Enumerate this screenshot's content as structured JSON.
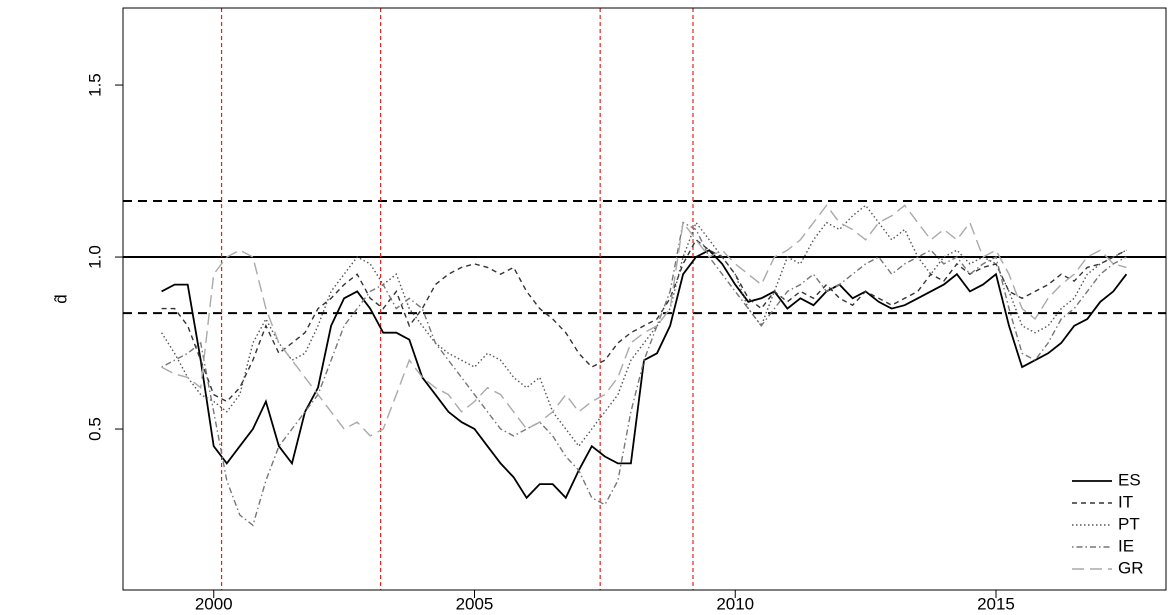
{
  "chart_data": {
    "type": "line",
    "ylabel": "d̂",
    "xlim": [
      1998.26,
      2018.26
    ],
    "ylim": [
      0.032,
      1.724
    ],
    "xticks": [
      2000,
      2005,
      2010,
      2015
    ],
    "yticks": [
      0.5,
      {
        "value": 1,
        "label": "1.0"
      },
      1.5
    ],
    "hlines": [
      {
        "value": 1,
        "color": "#000000",
        "dash": "none"
      },
      {
        "value": 1.163,
        "color": "#000000",
        "dash": "9 6"
      },
      {
        "value": 0.837,
        "color": "#000000",
        "dash": "9 6"
      }
    ],
    "vlines": {
      "color": "#e8201c",
      "values": [
        2000.15,
        2003.2,
        2007.41,
        2009.19
      ]
    },
    "legend": "bottom-right",
    "x": [
      1999,
      1999.25,
      1999.5,
      1999.75,
      2000,
      2000.25,
      2000.5,
      2000.75,
      2001,
      2001.25,
      2001.5,
      2001.75,
      2002,
      2002.25,
      2002.5,
      2002.75,
      2003,
      2003.25,
      2003.5,
      2003.75,
      2004,
      2004.25,
      2004.5,
      2004.75,
      2005,
      2005.25,
      2005.5,
      2005.75,
      2006,
      2006.25,
      2006.5,
      2006.75,
      2007,
      2007.25,
      2007.5,
      2007.75,
      2008,
      2008.25,
      2008.5,
      2008.75,
      2009,
      2009.25,
      2009.5,
      2009.75,
      2010,
      2010.25,
      2010.5,
      2010.75,
      2011,
      2011.25,
      2011.5,
      2011.75,
      2012,
      2012.25,
      2012.5,
      2012.75,
      2013,
      2013.25,
      2013.5,
      2013.75,
      2014,
      2014.25,
      2014.5,
      2014.75,
      2015,
      2015.25,
      2015.5,
      2015.75,
      2016,
      2016.25,
      2016.5,
      2016.75,
      2017,
      2017.25,
      2017.5
    ],
    "series": [
      {
        "name": "ES",
        "color": "#000000",
        "dash": "none",
        "values": [
          0.9,
          0.92,
          0.92,
          0.7,
          0.45,
          0.4,
          0.45,
          0.5,
          0.58,
          0.45,
          0.4,
          0.55,
          0.62,
          0.8,
          0.88,
          0.9,
          0.85,
          0.78,
          0.78,
          0.76,
          0.65,
          0.6,
          0.55,
          0.52,
          0.5,
          0.45,
          0.4,
          0.36,
          0.3,
          0.34,
          0.34,
          0.3,
          0.38,
          0.45,
          0.42,
          0.4,
          0.4,
          0.7,
          0.72,
          0.8,
          0.95,
          1.0,
          1.02,
          0.98,
          0.92,
          0.87,
          0.88,
          0.9,
          0.85,
          0.88,
          0.86,
          0.9,
          0.92,
          0.88,
          0.9,
          0.87,
          0.85,
          0.86,
          0.88,
          0.9,
          0.92,
          0.95,
          0.9,
          0.92,
          0.95,
          0.8,
          0.68,
          0.7,
          0.72,
          0.75,
          0.8,
          0.82,
          0.87,
          0.9,
          0.95
        ]
      },
      {
        "name": "IT",
        "color": "#333333",
        "dash": "5 4",
        "values": [
          0.85,
          0.85,
          0.8,
          0.7,
          0.6,
          0.58,
          0.62,
          0.7,
          0.8,
          0.72,
          0.75,
          0.78,
          0.85,
          0.88,
          0.92,
          0.95,
          0.88,
          0.85,
          0.9,
          0.8,
          0.85,
          0.92,
          0.95,
          0.97,
          0.98,
          0.97,
          0.95,
          0.97,
          0.9,
          0.85,
          0.82,
          0.78,
          0.72,
          0.68,
          0.7,
          0.75,
          0.78,
          0.8,
          0.82,
          0.88,
          0.98,
          1.05,
          1.02,
          1.0,
          0.95,
          0.88,
          0.85,
          0.9,
          0.87,
          0.9,
          0.88,
          0.92,
          0.88,
          0.86,
          0.9,
          0.88,
          0.86,
          0.88,
          0.9,
          0.95,
          0.93,
          0.98,
          0.95,
          0.97,
          0.98,
          0.9,
          0.88,
          0.9,
          0.92,
          0.95,
          0.93,
          0.97,
          0.98,
          1.0,
          1.02
        ]
      },
      {
        "name": "PT",
        "color": "#555555",
        "dash": "1.5 2.5",
        "values": [
          0.78,
          0.72,
          0.65,
          0.6,
          0.58,
          0.55,
          0.6,
          0.75,
          0.82,
          0.75,
          0.7,
          0.72,
          0.8,
          0.9,
          0.95,
          1.0,
          0.98,
          0.92,
          0.95,
          0.85,
          0.8,
          0.75,
          0.72,
          0.7,
          0.68,
          0.72,
          0.7,
          0.65,
          0.62,
          0.65,
          0.55,
          0.5,
          0.45,
          0.5,
          0.55,
          0.6,
          0.7,
          0.75,
          0.8,
          0.85,
          1.0,
          1.1,
          1.05,
          1.0,
          0.95,
          0.85,
          0.8,
          0.9,
          1.0,
          0.98,
          1.05,
          1.1,
          1.08,
          1.12,
          1.15,
          1.1,
          1.05,
          1.08,
          1.0,
          0.95,
          1.0,
          1.02,
          0.98,
          1.0,
          0.98,
          0.9,
          0.8,
          0.78,
          0.8,
          0.85,
          0.88,
          0.95,
          0.98,
          1.0,
          1.02
        ]
      },
      {
        "name": "IE",
        "color": "#777777",
        "dash": "1.5 3 6 3",
        "values": [
          0.68,
          0.7,
          0.72,
          0.75,
          0.55,
          0.35,
          0.25,
          0.22,
          0.35,
          0.45,
          0.5,
          0.55,
          0.6,
          0.7,
          0.8,
          0.85,
          0.9,
          0.92,
          0.85,
          0.88,
          0.85,
          0.75,
          0.7,
          0.65,
          0.6,
          0.55,
          0.5,
          0.48,
          0.5,
          0.52,
          0.48,
          0.42,
          0.38,
          0.3,
          0.28,
          0.35,
          0.55,
          0.7,
          0.8,
          0.9,
          1.1,
          1.08,
          1.0,
          0.95,
          0.9,
          0.85,
          0.8,
          0.85,
          0.9,
          0.92,
          0.95,
          0.9,
          0.92,
          0.95,
          0.98,
          1.0,
          0.95,
          0.98,
          1.0,
          1.02,
          0.98,
          1.0,
          0.95,
          0.98,
          1.0,
          0.85,
          0.72,
          0.7,
          0.75,
          0.82,
          0.85,
          0.9,
          0.95,
          0.98,
          1.0
        ]
      },
      {
        "name": "GR",
        "color": "#aaaaaa",
        "dash": "12 6",
        "values": [
          0.68,
          0.66,
          0.65,
          0.62,
          0.95,
          1.0,
          1.02,
          1.0,
          0.85,
          0.75,
          0.7,
          0.65,
          0.6,
          0.55,
          0.5,
          0.52,
          0.48,
          0.5,
          0.6,
          0.7,
          0.65,
          0.62,
          0.6,
          0.55,
          0.58,
          0.62,
          0.6,
          0.55,
          0.5,
          0.52,
          0.55,
          0.6,
          0.55,
          0.58,
          0.6,
          0.65,
          0.75,
          0.78,
          0.8,
          0.85,
          1.1,
          1.05,
          1.0,
          1.02,
          0.98,
          0.95,
          0.92,
          1.0,
          1.02,
          1.05,
          1.1,
          1.15,
          1.1,
          1.08,
          1.05,
          1.1,
          1.12,
          1.15,
          1.1,
          1.05,
          1.08,
          1.05,
          1.1,
          1.0,
          1.02,
          0.95,
          0.85,
          0.82,
          0.88,
          0.92,
          0.95,
          1.0,
          1.02,
          0.98,
          0.97
        ]
      }
    ]
  }
}
